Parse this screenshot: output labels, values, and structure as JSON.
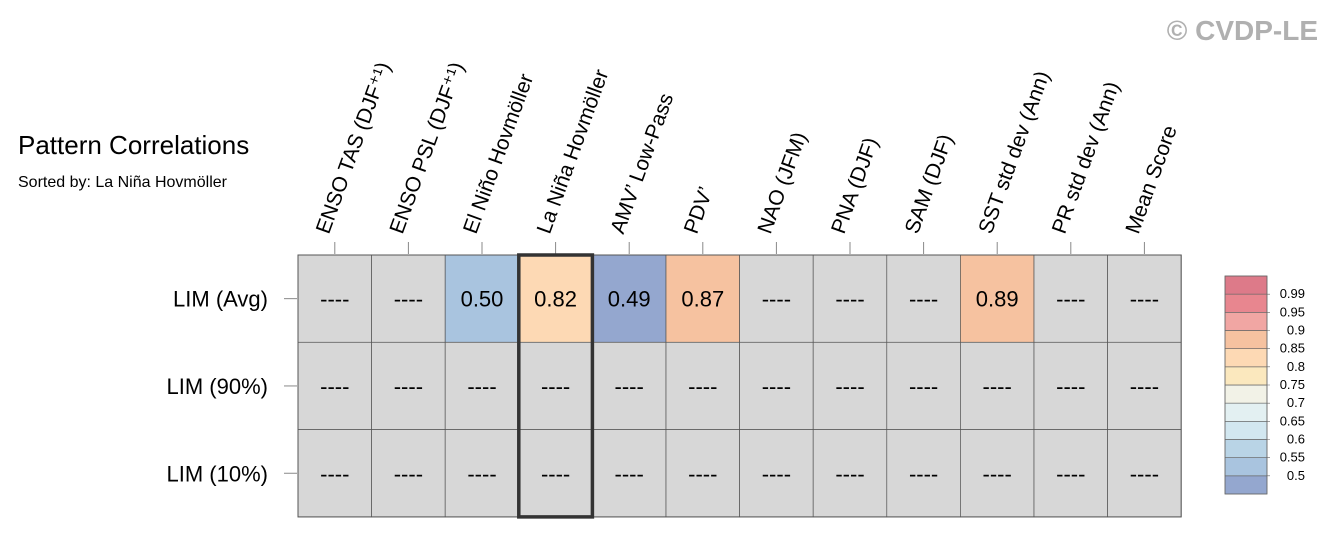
{
  "watermark": "© CVDP-LE",
  "title": "Pattern Correlations",
  "subtitle": "Sorted by: La Niña Hovmöller",
  "chart_data": {
    "type": "heatmap",
    "columns": [
      "ENSO TAS (DJF⁺¹)",
      "ENSO PSL (DJF⁺¹)",
      "El Niño Hovmöller",
      "La Niña Hovmöller",
      "AMV’ Low-Pass",
      "PDV’",
      "NAO (JFM)",
      "PNA (DJF)",
      "SAM (DJF)",
      "SST std dev (Ann)",
      "PR std dev (Ann)",
      "Mean Score"
    ],
    "rows": [
      "LIM (Avg)",
      "LIM (90%)",
      "LIM (10%)"
    ],
    "values": [
      [
        null,
        null,
        0.5,
        0.82,
        0.49,
        0.87,
        null,
        null,
        null,
        0.89,
        null,
        null
      ],
      [
        null,
        null,
        null,
        null,
        null,
        null,
        null,
        null,
        null,
        null,
        null,
        null
      ],
      [
        null,
        null,
        null,
        null,
        null,
        null,
        null,
        null,
        null,
        null,
        null,
        null
      ]
    ],
    "missing_label": "----",
    "highlighted_column": "La Niña Hovmöller",
    "legend": {
      "position": "right",
      "levels": [
        "0.99",
        "0.95",
        "0.9",
        "0.85",
        "0.8",
        "0.75",
        "0.7",
        "0.65",
        "0.6",
        "0.55",
        "0.5"
      ],
      "boundaries": [
        0.5,
        0.55,
        0.6,
        0.65,
        0.7,
        0.75,
        0.8,
        0.85,
        0.9,
        0.95,
        0.99
      ],
      "colors": [
        "#94a7cf",
        "#a9c4df",
        "#b9d4e6",
        "#d2e7f0",
        "#e3f0f2",
        "#f2f2e7",
        "#fbe8be",
        "#fdd9b4",
        "#f6c2a0",
        "#f1a6a3",
        "#e8868f",
        "#dd7a89"
      ],
      "missing_color": "#d7d7d7"
    }
  }
}
